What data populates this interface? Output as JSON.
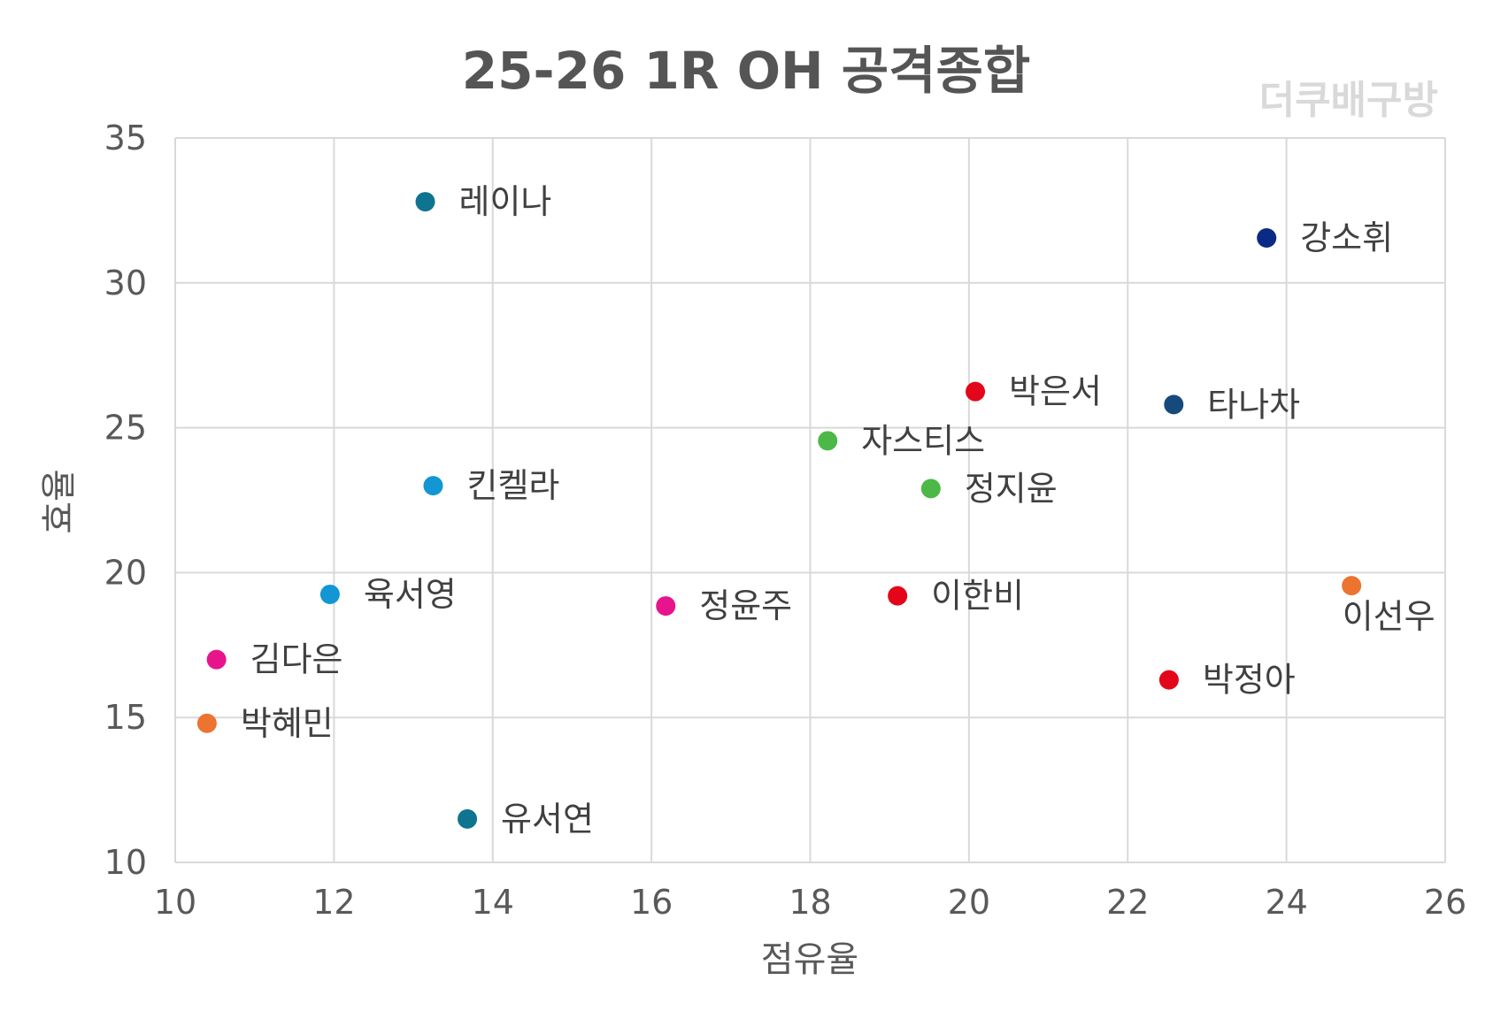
{
  "chart_data": {
    "type": "scatter",
    "title": "25-26 1R OH 공격종합",
    "watermark": "더쿠배구방",
    "xlabel": "점유율",
    "ylabel": "효율",
    "xlim": [
      10,
      26
    ],
    "ylim": [
      10,
      35
    ],
    "x_ticks": [
      10,
      12,
      14,
      16,
      18,
      20,
      22,
      24,
      26
    ],
    "y_ticks": [
      10,
      15,
      20,
      25,
      30,
      35
    ],
    "grid": true,
    "legend": "none",
    "points": [
      {
        "label": "레이나",
        "x": 13.15,
        "y": 32.8,
        "color": "#0e7490",
        "label_pos": "right"
      },
      {
        "label": "강소휘",
        "x": 23.75,
        "y": 31.55,
        "color": "#0b2a86",
        "label_pos": "right"
      },
      {
        "label": "박은서",
        "x": 20.08,
        "y": 26.25,
        "color": "#e3061a",
        "label_pos": "right"
      },
      {
        "label": "타나차",
        "x": 22.58,
        "y": 25.8,
        "color": "#174a7c",
        "label_pos": "right"
      },
      {
        "label": "자스티스",
        "x": 18.22,
        "y": 24.55,
        "color": "#4cb848",
        "label_pos": "right"
      },
      {
        "label": "킨켈라",
        "x": 13.25,
        "y": 23.0,
        "color": "#1296d4",
        "label_pos": "right"
      },
      {
        "label": "정지윤",
        "x": 19.52,
        "y": 22.9,
        "color": "#4cb848",
        "label_pos": "right"
      },
      {
        "label": "육서영",
        "x": 11.95,
        "y": 19.25,
        "color": "#1296d4",
        "label_pos": "right"
      },
      {
        "label": "정윤주",
        "x": 16.18,
        "y": 18.85,
        "color": "#e6158c",
        "label_pos": "right"
      },
      {
        "label": "이한비",
        "x": 19.1,
        "y": 19.2,
        "color": "#e3061a",
        "label_pos": "right"
      },
      {
        "label": "이선우",
        "x": 24.82,
        "y": 19.55,
        "color": "#ed7331",
        "label_pos": "below"
      },
      {
        "label": "김다은",
        "x": 10.52,
        "y": 17.0,
        "color": "#e6158c",
        "label_pos": "right"
      },
      {
        "label": "박정아",
        "x": 22.52,
        "y": 16.3,
        "color": "#e3061a",
        "label_pos": "right"
      },
      {
        "label": "박혜민",
        "x": 10.4,
        "y": 14.8,
        "color": "#ed7331",
        "label_pos": "right"
      },
      {
        "label": "유서연",
        "x": 13.68,
        "y": 11.5,
        "color": "#0e7490",
        "label_pos": "right"
      }
    ]
  }
}
